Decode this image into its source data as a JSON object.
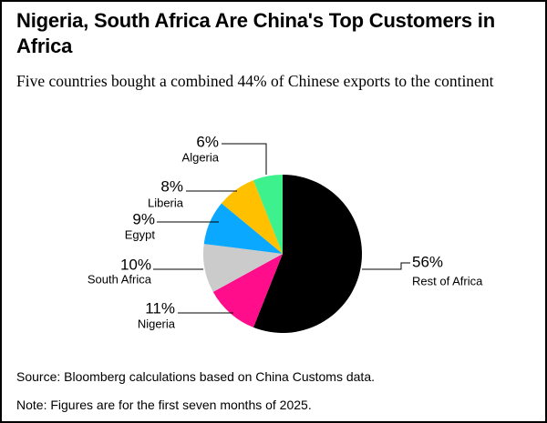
{
  "header": {
    "title": "Nigeria, South Africa Are China's Top Customers in Africa",
    "subtitle": "Five countries bought a combined 44% of Chinese exports to the continent"
  },
  "footer": {
    "source": "Source: Bloomberg calculations based on China Customs data.",
    "note": "Note: Figures are for the first seven months of 2025."
  },
  "chart_data": {
    "type": "pie",
    "title": "Nigeria, South Africa Are China's Top Customers in Africa",
    "subtitle": "Five countries bought a combined 44% of Chinese exports to the continent",
    "unit": "%",
    "slices": [
      {
        "name": "Rest of Africa",
        "value": 56,
        "label": "56%",
        "color": "#000000"
      },
      {
        "name": "Nigeria",
        "value": 11,
        "label": "11%",
        "color": "#ff0d8a"
      },
      {
        "name": "South Africa",
        "value": 10,
        "label": "10%",
        "color": "#cbcbcb"
      },
      {
        "name": "Egypt",
        "value": 9,
        "label": "9%",
        "color": "#0ba8ff"
      },
      {
        "name": "Liberia",
        "value": 8,
        "label": "8%",
        "color": "#ffc000"
      },
      {
        "name": "Algeria",
        "value": 6,
        "label": "6%",
        "color": "#3df28c"
      }
    ],
    "legend": "none",
    "slice_order": "clockwise from top"
  }
}
